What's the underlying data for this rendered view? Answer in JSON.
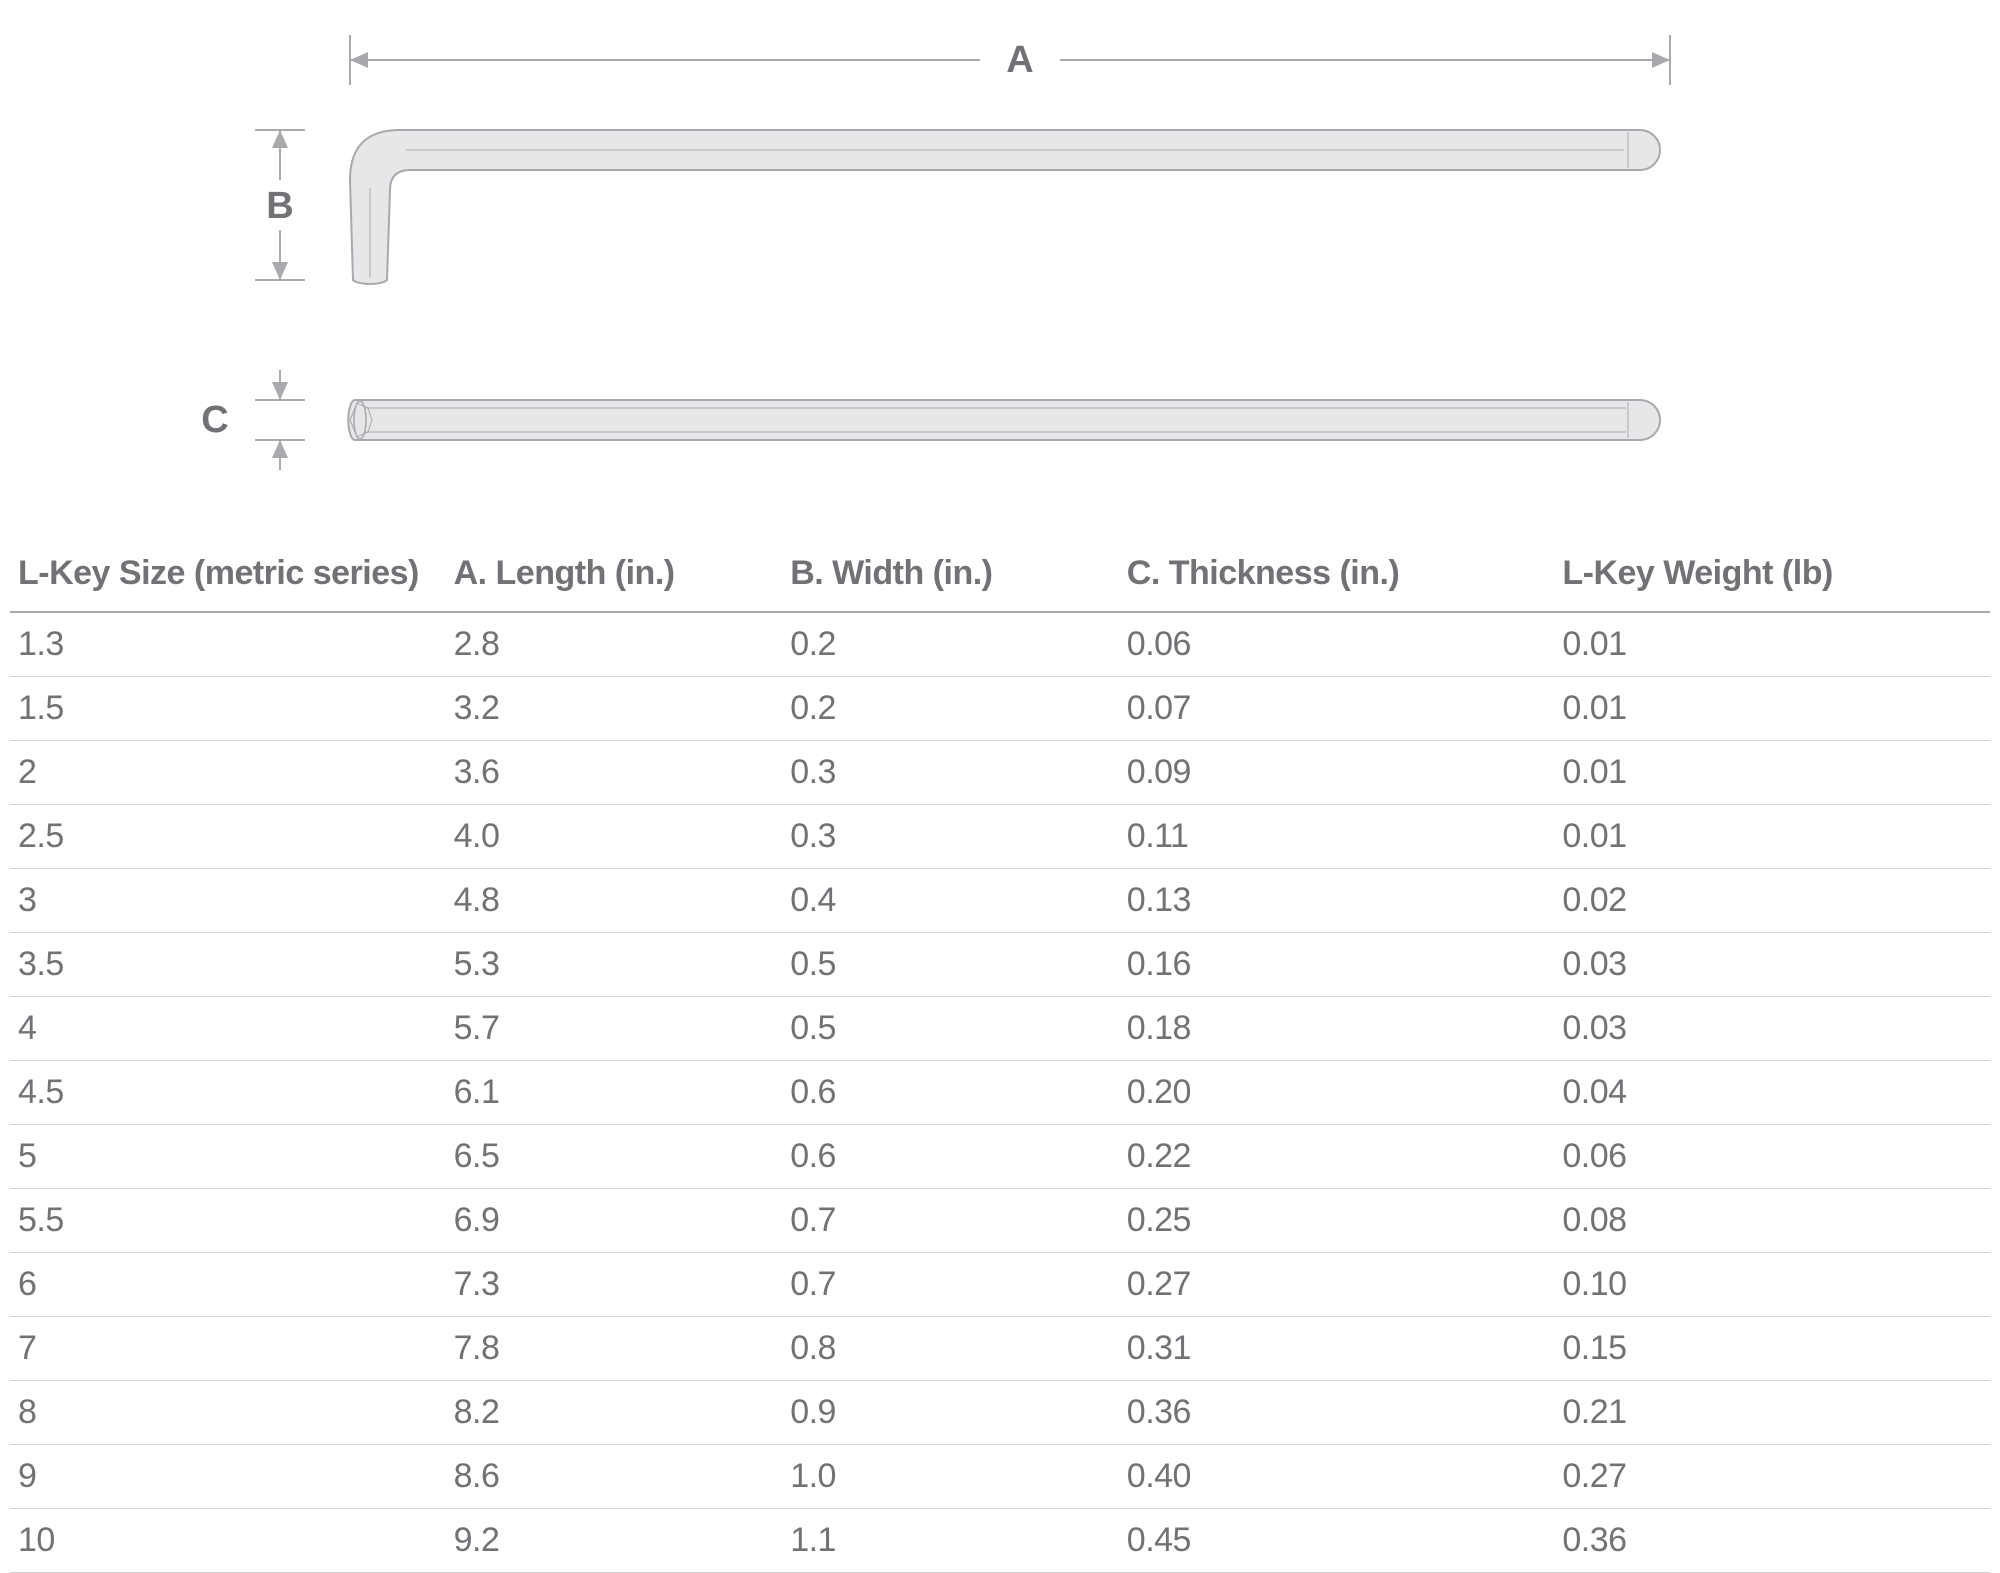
{
  "diagram": {
    "labels": {
      "A": "A",
      "B": "B",
      "C": "C"
    },
    "colors": {
      "stroke": "#a7a9ac",
      "fill": "#e6e7e8",
      "dim_stroke": "#a7a9ac",
      "label_text": "#707276",
      "bg": "#ffffff"
    },
    "label_fontsize": 38,
    "stroke_width": 2,
    "dim_stroke_width": 2
  },
  "table": {
    "columns": [
      "L-Key Size (metric series)",
      "A. Length (in.)",
      "B. Width (in.)",
      "C. Thickness (in.)",
      "L-Key Weight (lb)"
    ],
    "rows": [
      [
        "1.3",
        "2.8",
        "0.2",
        "0.06",
        "0.01"
      ],
      [
        "1.5",
        "3.2",
        "0.2",
        "0.07",
        "0.01"
      ],
      [
        "2",
        "3.6",
        "0.3",
        "0.09",
        "0.01"
      ],
      [
        "2.5",
        "4.0",
        "0.3",
        "0.11",
        "0.01"
      ],
      [
        "3",
        "4.8",
        "0.4",
        "0.13",
        "0.02"
      ],
      [
        "3.5",
        "5.3",
        "0.5",
        "0.16",
        "0.03"
      ],
      [
        "4",
        "5.7",
        "0.5",
        "0.18",
        "0.03"
      ],
      [
        "4.5",
        "6.1",
        "0.6",
        "0.20",
        "0.04"
      ],
      [
        "5",
        "6.5",
        "0.6",
        "0.22",
        "0.06"
      ],
      [
        "5.5",
        "6.9",
        "0.7",
        "0.25",
        "0.08"
      ],
      [
        "6",
        "7.3",
        "0.7",
        "0.27",
        "0.10"
      ],
      [
        "7",
        "7.8",
        "0.8",
        "0.31",
        "0.15"
      ],
      [
        "8",
        "8.2",
        "0.9",
        "0.36",
        "0.21"
      ],
      [
        "9",
        "8.6",
        "1.0",
        "0.40",
        "0.27"
      ],
      [
        "10",
        "9.2",
        "1.1",
        "0.45",
        "0.36"
      ]
    ],
    "header_fontsize": 34,
    "cell_fontsize": 34,
    "text_color": "#707276",
    "header_border_color": "#a6a8ab",
    "row_border_color": "#cfd0d2"
  }
}
